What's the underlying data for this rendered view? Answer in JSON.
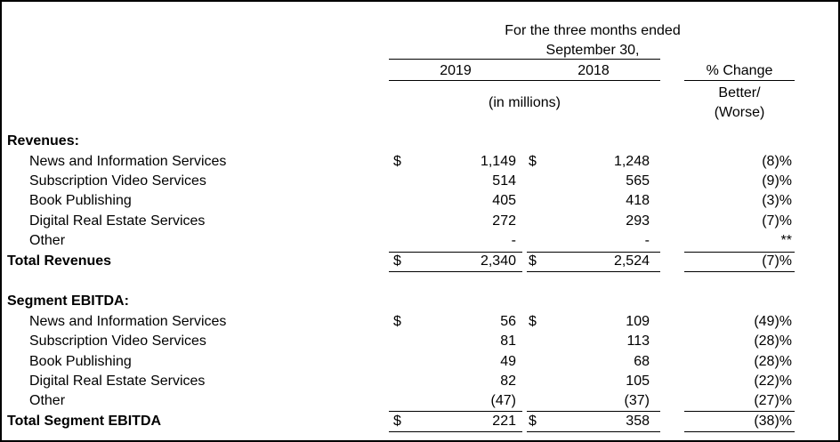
{
  "header": {
    "period_line1": "For the three months ended",
    "period_line2": "September 30,",
    "col_2019": "2019",
    "col_2018": "2018",
    "col_change": "% Change",
    "units": "(in millions)",
    "better_worse_1": "Better/",
    "better_worse_2": "(Worse)"
  },
  "revenues": {
    "title": "Revenues:",
    "rows": [
      {
        "label": "News and Information Services",
        "dollar_2019": "$",
        "v2019": "1,149",
        "dollar_2018": "$",
        "v2018": "1,248",
        "change": "(8)%"
      },
      {
        "label": "Subscription Video Services",
        "v2019": "514",
        "v2018": "565",
        "change": "(9)%"
      },
      {
        "label": "Book Publishing",
        "v2019": "405",
        "v2018": "418",
        "change": "(3)%"
      },
      {
        "label": "Digital Real Estate Services",
        "v2019": "272",
        "v2018": "293",
        "change": "(7)%"
      },
      {
        "label": "Other",
        "v2019": "-",
        "v2018": "-",
        "change": "**"
      }
    ],
    "total": {
      "label": "Total Revenues",
      "dollar_2019": "$",
      "v2019": "2,340",
      "dollar_2018": "$",
      "v2018": "2,524",
      "change": "(7)%"
    }
  },
  "ebitda": {
    "title": "Segment EBITDA:",
    "rows": [
      {
        "label": "News and Information Services",
        "dollar_2019": "$",
        "v2019": "56",
        "dollar_2018": "$",
        "v2018": "109",
        "change": "(49)%"
      },
      {
        "label": "Subscription Video Services",
        "v2019": "81",
        "v2018": "113",
        "change": "(28)%"
      },
      {
        "label": "Book Publishing",
        "v2019": "49",
        "v2018": "68",
        "change": "(28)%"
      },
      {
        "label": "Digital Real Estate Services",
        "v2019": "82",
        "v2018": "105",
        "change": "(22)%"
      },
      {
        "label": "Other",
        "v2019": "(47)",
        "v2018": "(37)",
        "change": "(27)%"
      }
    ],
    "total": {
      "label": "Total Segment EBITDA",
      "dollar_2019": "$",
      "v2019": "221",
      "dollar_2018": "$",
      "v2018": "358",
      "change": "(38)%"
    }
  }
}
